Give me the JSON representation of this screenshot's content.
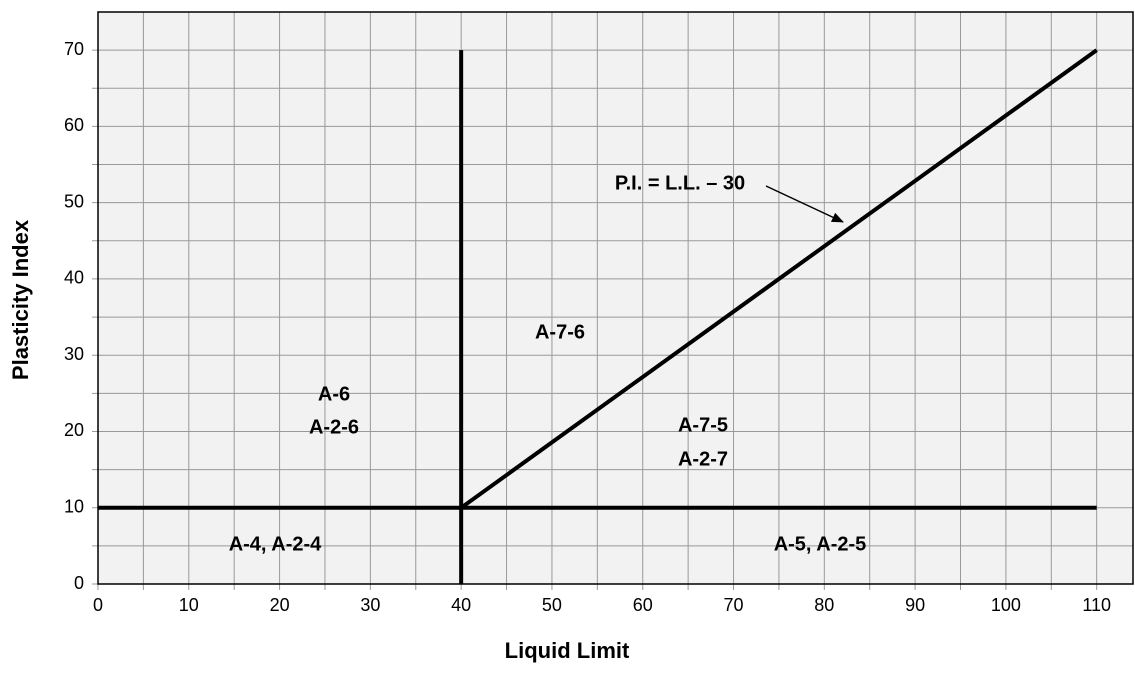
{
  "chart_data": {
    "type": "line",
    "x_label": "Liquid Limit",
    "y_label": "Plasticity Index",
    "xlim": [
      0,
      114
    ],
    "ylim": [
      0,
      75
    ],
    "xticks": [
      0,
      10,
      20,
      30,
      40,
      50,
      60,
      70,
      80,
      90,
      100,
      110
    ],
    "yticks": [
      0,
      10,
      20,
      30,
      40,
      50,
      60,
      70
    ],
    "xminor_ticks": [
      5,
      15,
      25,
      35,
      45,
      55,
      65,
      75,
      85,
      95,
      105
    ],
    "yminor_ticks": [
      5,
      15,
      25,
      35,
      45,
      55,
      65
    ],
    "grid": true,
    "grid_color": "#999999",
    "background": "#f2f2f2",
    "series": [
      {
        "color": "#000000",
        "x": [
          40,
          40
        ],
        "values": [
          0,
          70
        ]
      },
      {
        "color": "#000000",
        "x": [
          0,
          110
        ],
        "values": [
          10,
          10
        ]
      },
      {
        "color": "#000000",
        "x": [
          40,
          110
        ],
        "values": [
          10,
          70
        ]
      }
    ],
    "annotations": [
      "P.I. = L.L. – 30",
      "A-7-6",
      "A-6",
      "A-2-6",
      "A-7-5",
      "A-2-7",
      "A-4, A-2-4",
      "A-5, A-2-5"
    ]
  }
}
